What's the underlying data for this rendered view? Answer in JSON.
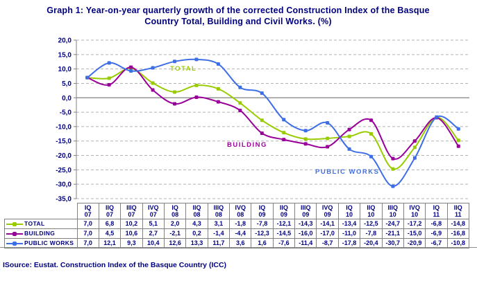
{
  "title": {
    "line1": "Graph 1: Year-on-year quarterly growth of the corrected Construction Index of the Basque",
    "line2": "Country Total, Building and Civil Works. (%)",
    "full": "Graph 1: Year-on-year quarterly growth of the corrected Construction Index of the Basque Country Total, Building and Civil Works. (%)"
  },
  "source": "ISource: Eustat. Construction Index of the Basque Country (ICC)",
  "colors": {
    "heading_text": "#000080",
    "table_text": "#000080",
    "grid_dashed": "#b0b0b0",
    "axis_and_zero_line": "#808080",
    "table_border": "#808080",
    "total_series": "#99cc00",
    "building_series": "#990099",
    "public_works_series": "#3d6ee8"
  },
  "chart_data": {
    "type": "line",
    "title": "Year-on-year quarterly growth of the corrected Construction Index of the Basque Country Total, Building and Civil Works. (%)",
    "xlabel": "",
    "ylabel": "",
    "categories": [
      "IQ 07",
      "IIQ 07",
      "IIIQ 07",
      "IVQ 07",
      "IQ 08",
      "IIQ 08",
      "IIIQ 08",
      "IVQ 08",
      "IQ 09",
      "IIQ 09",
      "IIIQ 09",
      "IVQ 09",
      "IQ 10",
      "IIQ 10",
      "IIIQ 10",
      "IVQ 10",
      "IQ 11",
      "IIQ 11"
    ],
    "series": [
      {
        "name": "TOTAL",
        "color": "#99cc00",
        "values": [
          7.0,
          6.8,
          10.2,
          5.1,
          2.0,
          4.3,
          3.1,
          -1.8,
          -7.8,
          -12.1,
          -14.3,
          -14.1,
          -13.4,
          -12.5,
          -24.7,
          -17.2,
          -6.8,
          -14.8
        ]
      },
      {
        "name": "BUILDING",
        "color": "#990099",
        "values": [
          7.0,
          4.5,
          10.6,
          2.7,
          -2.1,
          0.2,
          -1.4,
          -4.4,
          -12.3,
          -14.5,
          -16.0,
          -17.0,
          -11.0,
          -7.8,
          -21.1,
          -15.0,
          -6.9,
          -16.8
        ]
      },
      {
        "name": "PUBLIC WORKS",
        "color": "#3d6ee8",
        "values": [
          7.0,
          12.1,
          9.3,
          10.4,
          12.6,
          13.3,
          11.7,
          3.6,
          1.6,
          -7.6,
          -11.4,
          -8.7,
          -17.8,
          -20.4,
          -30.7,
          -20.9,
          -6.7,
          -10.8
        ]
      }
    ],
    "ylim": [
      -35,
      20
    ],
    "ytick_step": 5,
    "ytick_labels": [
      "20,0",
      "15,0",
      "10,0",
      "5,0",
      "0,0",
      "-5,0",
      "-10,0",
      "-15,0",
      "-20,0",
      "-25,0",
      "-30,0",
      "-35,0"
    ],
    "decimal_separator": ",",
    "grid": "horizontal dashed, solid line at zero",
    "legend_position": "left column of data table below chart",
    "series_labels_on_chart": [
      "TOTAL",
      "BUILDING",
      "PUBLIC WORKS"
    ]
  },
  "table": {
    "col_headers": [
      "IQ 07",
      "IIQ 07",
      "IIIQ 07",
      "IVQ 07",
      "IQ 08",
      "IIQ 08",
      "IIIQ 08",
      "IVQ 08",
      "IQ 09",
      "IIQ 09",
      "IIIQ 09",
      "IVQ 09",
      "IQ 10",
      "IIQ 10",
      "IIIQ 10",
      "IVQ 10",
      "IQ 11",
      "IIQ 11"
    ],
    "row_labels": [
      "TOTAL",
      "BUILDING",
      "PUBLIC WORKS"
    ],
    "rows": [
      [
        "7,0",
        "6,8",
        "10,2",
        "5,1",
        "2,0",
        "4,3",
        "3,1",
        "-1,8",
        "-7,8",
        "-12,1",
        "-14,3",
        "-14,1",
        "-13,4",
        "-12,5",
        "-24,7",
        "-17,2",
        "-6,8",
        "-14,8"
      ],
      [
        "7,0",
        "4,5",
        "10,6",
        "2,7",
        "-2,1",
        "0,2",
        "-1,4",
        "-4,4",
        "-12,3",
        "-14,5",
        "-16,0",
        "-17,0",
        "-11,0",
        "-7,8",
        "-21,1",
        "-15,0",
        "-6,9",
        "-16,8"
      ],
      [
        "7,0",
        "12,1",
        "9,3",
        "10,4",
        "12,6",
        "13,3",
        "11,7",
        "3,6",
        "1,6",
        "-7,6",
        "-11,4",
        "-8,7",
        "-17,8",
        "-20,4",
        "-30,7",
        "-20,9",
        "-6,7",
        "-10,8"
      ]
    ]
  }
}
